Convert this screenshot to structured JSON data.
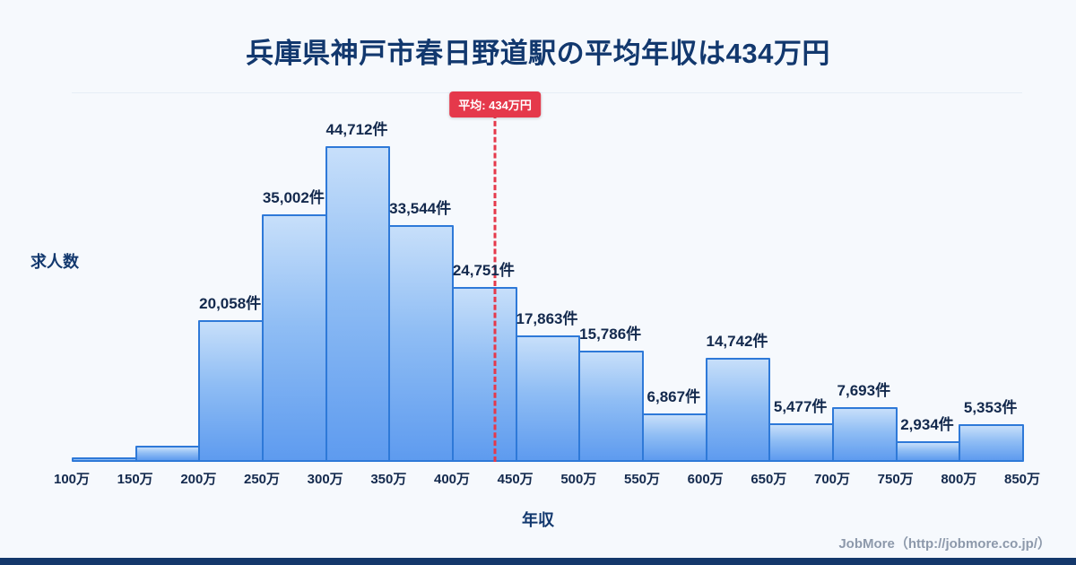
{
  "page": {
    "footer_credit": "JobMore（http://jobmore.co.jp/）"
  },
  "chart_data": {
    "type": "bar",
    "title": "兵庫県神戸市春日野道駅の平均年収は434万円",
    "xlabel": "年収",
    "ylabel": "求人数",
    "x_ticks": [
      "100万",
      "150万",
      "200万",
      "250万",
      "300万",
      "350万",
      "400万",
      "450万",
      "500万",
      "550万",
      "600万",
      "650万",
      "700万",
      "750万",
      "800万",
      "850万"
    ],
    "ylim": [
      0,
      47000
    ],
    "grid": "minimal",
    "legend": "none",
    "bins": [
      {
        "range": "100万-150万",
        "value": 600,
        "label": ""
      },
      {
        "range": "150万-200万",
        "value": 2300,
        "label": ""
      },
      {
        "range": "200万-250万",
        "value": 20058,
        "label": "20,058件"
      },
      {
        "range": "250万-300万",
        "value": 35002,
        "label": "35,002件"
      },
      {
        "range": "300万-350万",
        "value": 44712,
        "label": "44,712件"
      },
      {
        "range": "350万-400万",
        "value": 33544,
        "label": "33,544件"
      },
      {
        "range": "400万-450万",
        "value": 24751,
        "label": "24,751件"
      },
      {
        "range": "450万-500万",
        "value": 17863,
        "label": "17,863件"
      },
      {
        "range": "500万-550万",
        "value": 15786,
        "label": "15,786件"
      },
      {
        "range": "550万-600万",
        "value": 6867,
        "label": "6,867件"
      },
      {
        "range": "600万-650万",
        "value": 14742,
        "label": "14,742件"
      },
      {
        "range": "650万-700万",
        "value": 5477,
        "label": "5,477件"
      },
      {
        "range": "700万-750万",
        "value": 7693,
        "label": "7,693件"
      },
      {
        "range": "750万-800万",
        "value": 2934,
        "label": "2,934件"
      },
      {
        "range": "800万-850万",
        "value": 5353,
        "label": "5,353件"
      }
    ],
    "average_line": {
      "value": 434,
      "label": "平均: 434万円",
      "x_min": 100,
      "x_max": 850
    },
    "colors": {
      "background": "#f6f9fd",
      "title_text": "#12386e",
      "value_text": "#13294d",
      "bar_border": "#2e79d8",
      "bar_fill_top": "#c7dffa",
      "bar_fill_bottom": "#5e9bef",
      "average_line": "#e5394b",
      "footer_text": "#8d99ab",
      "bottom_strip": "#14386b"
    }
  }
}
